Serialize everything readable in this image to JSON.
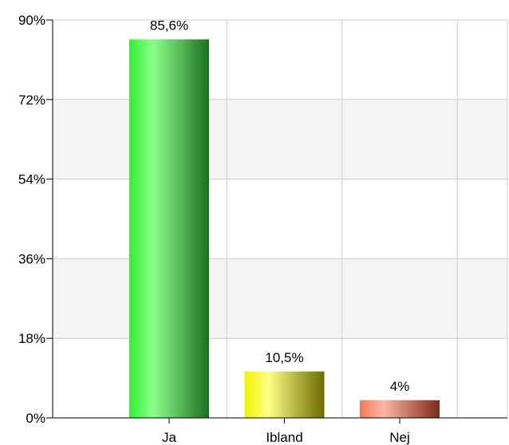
{
  "chart_data": {
    "type": "bar",
    "categories": [
      "Ja",
      "Ibland",
      "Nej"
    ],
    "values": [
      85.6,
      10.5,
      4.0
    ],
    "data_labels": [
      "85,6%",
      "10,5%",
      "4%"
    ],
    "ylim": [
      0,
      90
    ],
    "y_ticks": [
      0,
      18,
      36,
      54,
      72,
      90
    ],
    "y_tick_labels": [
      "0%",
      "18%",
      "36%",
      "54%",
      "72%",
      "90%"
    ],
    "grid": true,
    "banded_background": true,
    "colors": [
      {
        "light": "#8cff8c",
        "base": "#33ee33",
        "dark": "#1d6f1d"
      },
      {
        "light": "#ffff88",
        "base": "#f2f200",
        "dark": "#6b6b00"
      },
      {
        "light": "#ffb7a0",
        "base": "#f07a5a",
        "dark": "#7a2a1a"
      }
    ],
    "band_color": "#f4f4f4",
    "grid_color": "#cccccc",
    "axis_color": "#000000"
  }
}
